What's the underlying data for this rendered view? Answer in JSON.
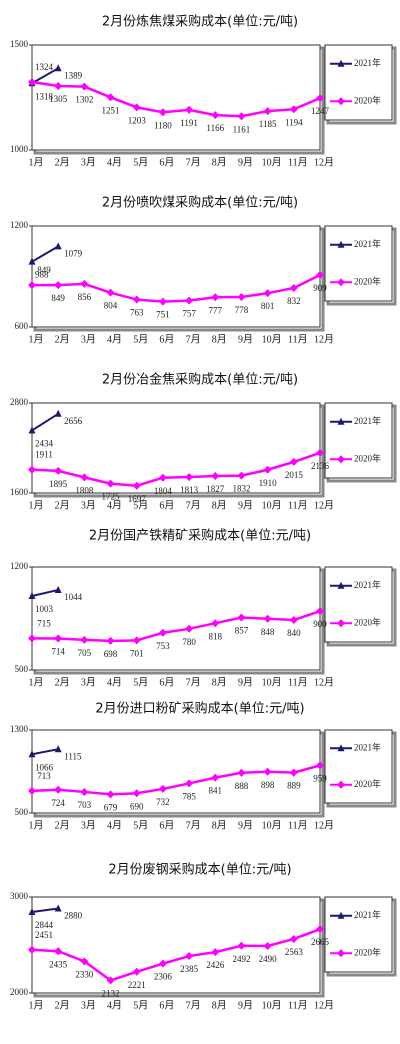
{
  "chart_data": [
    {
      "type": "line",
      "title": "2月份炼焦煤采购成本(单位:元/吨)",
      "categories": [
        "1月",
        "2月",
        "3月",
        "4月",
        "5月",
        "6月",
        "7月",
        "8月",
        "9月",
        "10月",
        "11月",
        "12月"
      ],
      "ylim": [
        1000,
        1500
      ],
      "yticks": [
        1000,
        1500
      ],
      "series": [
        {
          "name": "2021年",
          "color": "#1a1a6e",
          "values": [
            1318,
            1389,
            null,
            null,
            null,
            null,
            null,
            null,
            null,
            null,
            null,
            null
          ]
        },
        {
          "name": "2020年",
          "color": "#ff00ff",
          "values": [
            1324,
            1305,
            1302,
            1251,
            1203,
            1180,
            1191,
            1166,
            1161,
            1185,
            1194,
            1247
          ]
        }
      ]
    },
    {
      "type": "line",
      "title": "2月份喷吹煤采购成本(单位:元/吨)",
      "categories": [
        "1月",
        "2月",
        "3月",
        "4月",
        "5月",
        "6月",
        "7月",
        "8月",
        "9月",
        "10月",
        "11月",
        "12月"
      ],
      "ylim": [
        600,
        1200
      ],
      "yticks": [
        600,
        1200
      ],
      "series": [
        {
          "name": "2021年",
          "color": "#1a1a6e",
          "values": [
            988,
            1079,
            null,
            null,
            null,
            null,
            null,
            null,
            null,
            null,
            null,
            null
          ]
        },
        {
          "name": "2020年",
          "color": "#ff00ff",
          "values": [
            849,
            849,
            856,
            804,
            763,
            751,
            757,
            777,
            778,
            801,
            832,
            909
          ]
        }
      ]
    },
    {
      "type": "line",
      "title": "2月份冶金焦采购成本(单位:元/吨)",
      "categories": [
        "1月",
        "2月",
        "3月",
        "4月",
        "5月",
        "6月",
        "7月",
        "8月",
        "9月",
        "10月",
        "11月",
        "12月"
      ],
      "ylim": [
        1600,
        2800
      ],
      "yticks": [
        1600,
        2800
      ],
      "series": [
        {
          "name": "2021年",
          "color": "#1a1a6e",
          "values": [
            2434,
            2656,
            null,
            null,
            null,
            null,
            null,
            null,
            null,
            null,
            null,
            null
          ]
        },
        {
          "name": "2020年",
          "color": "#ff00ff",
          "values": [
            1911,
            1895,
            1808,
            1725,
            1697,
            1804,
            1813,
            1827,
            1832,
            1910,
            2015,
            2136
          ]
        }
      ]
    },
    {
      "type": "line",
      "title": "2月份国产铁精矿采购成本(单位:元/吨)",
      "categories": [
        "1月",
        "2月",
        "3月",
        "4月",
        "5月",
        "6月",
        "7月",
        "8月",
        "9月",
        "10月",
        "11月",
        "12月"
      ],
      "ylim": [
        500,
        1200
      ],
      "yticks": [
        500,
        1200
      ],
      "series": [
        {
          "name": "2021年",
          "color": "#1a1a6e",
          "values": [
            1003,
            1044,
            null,
            null,
            null,
            null,
            null,
            null,
            null,
            null,
            null,
            null
          ]
        },
        {
          "name": "2020年",
          "color": "#ff00ff",
          "values": [
            715,
            714,
            705,
            698,
            701,
            753,
            780,
            818,
            857,
            848,
            840,
            900
          ]
        }
      ]
    },
    {
      "type": "line",
      "title": "2月份进口粉矿采购成本(单位:元/吨)",
      "categories": [
        "1月",
        "2月",
        "3月",
        "4月",
        "5月",
        "6月",
        "7月",
        "8月",
        "9月",
        "10月",
        "11月",
        "12月"
      ],
      "ylim": [
        500,
        1300
      ],
      "yticks": [
        500,
        1300
      ],
      "series": [
        {
          "name": "2021年",
          "color": "#1a1a6e",
          "values": [
            1066,
            1115,
            null,
            null,
            null,
            null,
            null,
            null,
            null,
            null,
            null,
            null
          ]
        },
        {
          "name": "2020年",
          "color": "#ff00ff",
          "values": [
            713,
            724,
            703,
            679,
            690,
            732,
            785,
            841,
            888,
            898,
            889,
            959
          ]
        }
      ]
    },
    {
      "type": "line",
      "title": "2月份废钢采购成本(单位:元/吨)",
      "categories": [
        "1月",
        "2月",
        "3月",
        "4月",
        "5月",
        "6月",
        "7月",
        "8月",
        "9月",
        "10月",
        "11月",
        "12月"
      ],
      "ylim": [
        2000,
        3000
      ],
      "yticks": [
        2000,
        3000
      ],
      "series": [
        {
          "name": "2021年",
          "color": "#1a1a6e",
          "values": [
            2844,
            2880,
            null,
            null,
            null,
            null,
            null,
            null,
            null,
            null,
            null,
            null
          ]
        },
        {
          "name": "2020年",
          "color": "#ff00ff",
          "values": [
            2451,
            2435,
            2330,
            2132,
            2221,
            2306,
            2385,
            2426,
            2492,
            2490,
            2563,
            2665
          ]
        }
      ]
    }
  ]
}
